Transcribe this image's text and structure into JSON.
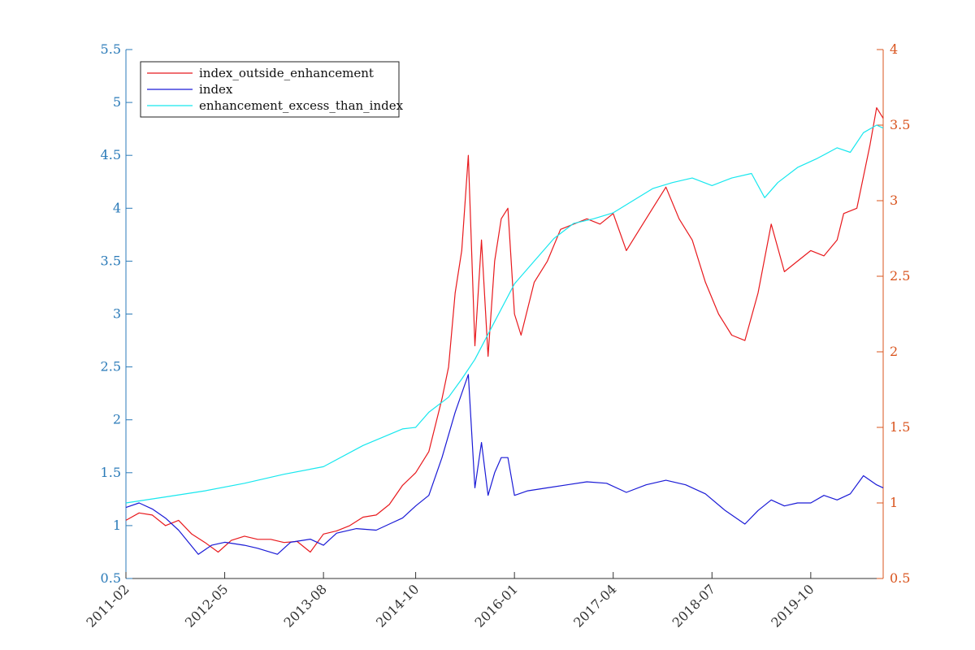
{
  "colors": {
    "left_axis": "#2a7ab8",
    "right_axis": "#d9541e",
    "x_axis": "#333333"
  },
  "chart_data": {
    "type": "line",
    "title": "",
    "xlabel": "",
    "ylabel": "",
    "x_range": [
      "2011-02",
      "2020-09"
    ],
    "x_ticks": [
      "2011-02",
      "2012-05",
      "2013-08",
      "2014-10",
      "2016-01",
      "2017-04",
      "2018-07",
      "2019-10"
    ],
    "y_left_range": [
      0.5,
      5.5
    ],
    "y_left_ticks": [
      0.5,
      1,
      1.5,
      2,
      2.5,
      3,
      3.5,
      4,
      4.5,
      5,
      5.5
    ],
    "y_right_range": [
      0.5,
      4
    ],
    "y_right_ticks": [
      0.5,
      1,
      1.5,
      2,
      2.5,
      3,
      3.5,
      4
    ],
    "grid": false,
    "legend_position": "top-left",
    "series": [
      {
        "name": "index_outside_enhancement",
        "axis": "left",
        "color": "#e8191d",
        "points": [
          [
            "2011-02",
            1.05
          ],
          [
            "2011-04",
            1.12
          ],
          [
            "2011-06",
            1.1
          ],
          [
            "2011-08",
            1.0
          ],
          [
            "2011-10",
            1.05
          ],
          [
            "2011-12",
            0.92
          ],
          [
            "2012-02",
            0.84
          ],
          [
            "2012-04",
            0.75
          ],
          [
            "2012-06",
            0.86
          ],
          [
            "2012-08",
            0.9
          ],
          [
            "2012-10",
            0.87
          ],
          [
            "2012-12",
            0.87
          ],
          [
            "2013-02",
            0.84
          ],
          [
            "2013-04",
            0.85
          ],
          [
            "2013-06",
            0.75
          ],
          [
            "2013-08",
            0.92
          ],
          [
            "2013-10",
            0.95
          ],
          [
            "2013-12",
            1.0
          ],
          [
            "2014-02",
            1.08
          ],
          [
            "2014-04",
            1.1
          ],
          [
            "2014-06",
            1.2
          ],
          [
            "2014-08",
            1.38
          ],
          [
            "2014-10",
            1.5
          ],
          [
            "2014-12",
            1.7
          ],
          [
            "2015-02",
            2.2
          ],
          [
            "2015-03",
            2.5
          ],
          [
            "2015-04",
            3.2
          ],
          [
            "2015-05",
            3.6
          ],
          [
            "2015-06",
            4.5
          ],
          [
            "2015-07",
            2.7
          ],
          [
            "2015-08",
            3.7
          ],
          [
            "2015-09",
            2.6
          ],
          [
            "2015-10",
            3.5
          ],
          [
            "2015-11",
            3.9
          ],
          [
            "2015-12",
            4.0
          ],
          [
            "2016-01",
            3.0
          ],
          [
            "2016-02",
            2.8
          ],
          [
            "2016-04",
            3.3
          ],
          [
            "2016-06",
            3.5
          ],
          [
            "2016-08",
            3.8
          ],
          [
            "2016-10",
            3.85
          ],
          [
            "2016-12",
            3.9
          ],
          [
            "2017-02",
            3.85
          ],
          [
            "2017-04",
            3.95
          ],
          [
            "2017-06",
            3.6
          ],
          [
            "2017-08",
            3.8
          ],
          [
            "2017-10",
            4.0
          ],
          [
            "2017-12",
            4.2
          ],
          [
            "2018-02",
            3.9
          ],
          [
            "2018-04",
            3.7
          ],
          [
            "2018-06",
            3.3
          ],
          [
            "2018-08",
            3.0
          ],
          [
            "2018-10",
            2.8
          ],
          [
            "2018-12",
            2.75
          ],
          [
            "2019-02",
            3.2
          ],
          [
            "2019-04",
            3.85
          ],
          [
            "2019-06",
            3.4
          ],
          [
            "2019-08",
            3.5
          ],
          [
            "2019-10",
            3.6
          ],
          [
            "2019-12",
            3.55
          ],
          [
            "2020-02",
            3.7
          ],
          [
            "2020-03",
            3.95
          ],
          [
            "2020-05",
            4.0
          ],
          [
            "2020-07",
            4.6
          ],
          [
            "2020-08",
            4.95
          ],
          [
            "2020-09",
            4.85
          ]
        ]
      },
      {
        "name": "index",
        "axis": "right",
        "color": "#1a1ad6",
        "points": [
          [
            "2011-02",
            0.97
          ],
          [
            "2011-04",
            1.0
          ],
          [
            "2011-06",
            0.96
          ],
          [
            "2011-08",
            0.9
          ],
          [
            "2011-10",
            0.82
          ],
          [
            "2012-01",
            0.66
          ],
          [
            "2012-03",
            0.72
          ],
          [
            "2012-05",
            0.74
          ],
          [
            "2012-08",
            0.72
          ],
          [
            "2012-10",
            0.7
          ],
          [
            "2013-01",
            0.66
          ],
          [
            "2013-03",
            0.74
          ],
          [
            "2013-06",
            0.76
          ],
          [
            "2013-08",
            0.72
          ],
          [
            "2013-10",
            0.8
          ],
          [
            "2014-01",
            0.83
          ],
          [
            "2014-04",
            0.82
          ],
          [
            "2014-06",
            0.86
          ],
          [
            "2014-08",
            0.9
          ],
          [
            "2014-10",
            0.98
          ],
          [
            "2014-12",
            1.05
          ],
          [
            "2015-02",
            1.3
          ],
          [
            "2015-04",
            1.6
          ],
          [
            "2015-06",
            1.85
          ],
          [
            "2015-07",
            1.1
          ],
          [
            "2015-08",
            1.4
          ],
          [
            "2015-09",
            1.05
          ],
          [
            "2015-10",
            1.2
          ],
          [
            "2015-11",
            1.3
          ],
          [
            "2015-12",
            1.3
          ],
          [
            "2016-01",
            1.05
          ],
          [
            "2016-03",
            1.08
          ],
          [
            "2016-06",
            1.1
          ],
          [
            "2016-09",
            1.12
          ],
          [
            "2016-12",
            1.14
          ],
          [
            "2017-03",
            1.13
          ],
          [
            "2017-06",
            1.07
          ],
          [
            "2017-09",
            1.12
          ],
          [
            "2017-12",
            1.15
          ],
          [
            "2018-03",
            1.12
          ],
          [
            "2018-06",
            1.06
          ],
          [
            "2018-09",
            0.95
          ],
          [
            "2018-12",
            0.86
          ],
          [
            "2019-02",
            0.95
          ],
          [
            "2019-04",
            1.02
          ],
          [
            "2019-06",
            0.98
          ],
          [
            "2019-08",
            1.0
          ],
          [
            "2019-10",
            1.0
          ],
          [
            "2019-12",
            1.05
          ],
          [
            "2020-02",
            1.02
          ],
          [
            "2020-04",
            1.06
          ],
          [
            "2020-06",
            1.18
          ],
          [
            "2020-08",
            1.12
          ],
          [
            "2020-09",
            1.1
          ]
        ]
      },
      {
        "name": "enhancement_excess_than_index",
        "axis": "right",
        "color": "#17e7ee",
        "points": [
          [
            "2011-02",
            1.0
          ],
          [
            "2011-08",
            1.04
          ],
          [
            "2012-02",
            1.08
          ],
          [
            "2012-08",
            1.13
          ],
          [
            "2013-02",
            1.19
          ],
          [
            "2013-08",
            1.24
          ],
          [
            "2014-02",
            1.38
          ],
          [
            "2014-08",
            1.49
          ],
          [
            "2014-10",
            1.5
          ],
          [
            "2014-12",
            1.6
          ],
          [
            "2015-03",
            1.7
          ],
          [
            "2015-05",
            1.82
          ],
          [
            "2015-07",
            1.95
          ],
          [
            "2015-10",
            2.2
          ],
          [
            "2016-01",
            2.45
          ],
          [
            "2016-04",
            2.6
          ],
          [
            "2016-07",
            2.75
          ],
          [
            "2016-10",
            2.85
          ],
          [
            "2017-01",
            2.88
          ],
          [
            "2017-04",
            2.92
          ],
          [
            "2017-07",
            3.0
          ],
          [
            "2017-10",
            3.08
          ],
          [
            "2018-01",
            3.12
          ],
          [
            "2018-04",
            3.15
          ],
          [
            "2018-07",
            3.1
          ],
          [
            "2018-10",
            3.15
          ],
          [
            "2019-01",
            3.18
          ],
          [
            "2019-03",
            3.02
          ],
          [
            "2019-05",
            3.12
          ],
          [
            "2019-08",
            3.22
          ],
          [
            "2019-11",
            3.28
          ],
          [
            "2020-02",
            3.35
          ],
          [
            "2020-04",
            3.32
          ],
          [
            "2020-06",
            3.45
          ],
          [
            "2020-08",
            3.5
          ],
          [
            "2020-09",
            3.48
          ]
        ]
      }
    ]
  }
}
